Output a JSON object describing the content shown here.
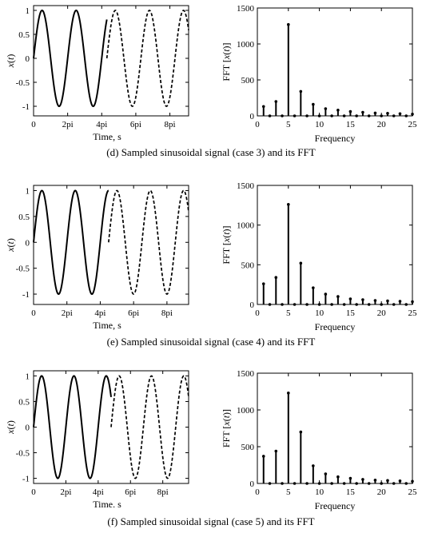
{
  "panels": [
    {
      "caption": "(d) Sampled sinusoidal signal (case 3) and its FFT",
      "time_xlabel": "Time, s",
      "time_ylabel": "x(t)",
      "fft_xlabel": "Frequency",
      "fft_ylabel": "FFT [x(t)]"
    },
    {
      "caption": "(e) Sampled sinusoidal signal (case 4) and its FFT",
      "time_xlabel": "Time, s",
      "time_ylabel": "x(t)",
      "fft_xlabel": "Frequency",
      "fft_ylabel": "FFT [x(t)]"
    },
    {
      "caption": "(f) Sampled sinusoidal signal (case 5) and its FFT",
      "time_xlabel": "Time. s",
      "time_ylabel": "x(t)",
      "fft_xlabel": "Frequency",
      "fft_ylabel": "FFT [x(t)]"
    }
  ],
  "chart_data": [
    {
      "type": "line",
      "panel": "d",
      "xlabel": "Time, s",
      "ylabel": "x(t)",
      "xticks": [
        "0",
        "2pi",
        "4pi",
        "6pi",
        "8pi"
      ],
      "yticks": [
        "-1",
        "-0.5",
        "0",
        "0.5",
        "1"
      ],
      "xlim_pi": [
        0,
        9.1
      ],
      "ylim": [
        -1.2,
        1.1
      ],
      "signal": "sin(t)",
      "solid_segment_pi": [
        0,
        4.3
      ],
      "dashed_segment_pi": [
        4.3,
        9.1
      ],
      "dashed_phase_shift_pi": 0.3
    },
    {
      "type": "bar",
      "panel": "d",
      "xlabel": "Frequency",
      "ylabel": "FFT [x(t)]",
      "xticks": [
        0,
        5,
        10,
        15,
        20,
        25
      ],
      "yticks": [
        0,
        500,
        1000,
        1500
      ],
      "xlim": [
        0,
        25
      ],
      "ylim": [
        0,
        1500
      ],
      "x": [
        1,
        2,
        3,
        4,
        5,
        6,
        7,
        8,
        9,
        10,
        11,
        12,
        13,
        14,
        15,
        16,
        17,
        18,
        19,
        20,
        21,
        22,
        23,
        24,
        25
      ],
      "values": [
        130,
        0,
        200,
        0,
        1270,
        0,
        340,
        0,
        160,
        0,
        100,
        0,
        80,
        0,
        60,
        0,
        50,
        0,
        40,
        0,
        35,
        0,
        30,
        0,
        25
      ]
    },
    {
      "type": "line",
      "panel": "e",
      "xlabel": "Time, s",
      "ylabel": "x(t)",
      "xticks": [
        "0",
        "2pi",
        "4pi",
        "6pi",
        "8pi"
      ],
      "yticks": [
        "-1",
        "-0.5",
        "0",
        "0.5",
        "1"
      ],
      "xlim_pi": [
        0,
        9.3
      ],
      "ylim": [
        -1.2,
        1.1
      ],
      "signal": "sin(t)",
      "solid_segment_pi": [
        0,
        4.5
      ],
      "dashed_segment_pi": [
        4.5,
        9.3
      ],
      "dashed_phase_shift_pi": 0.5
    },
    {
      "type": "bar",
      "panel": "e",
      "xlabel": "Frequency",
      "ylabel": "FFT [x(t)]",
      "xticks": [
        0,
        5,
        10,
        15,
        20,
        25
      ],
      "yticks": [
        0,
        500,
        1000,
        1500
      ],
      "xlim": [
        0,
        25
      ],
      "ylim": [
        0,
        1500
      ],
      "x": [
        1,
        2,
        3,
        4,
        5,
        6,
        7,
        8,
        9,
        10,
        11,
        12,
        13,
        14,
        15,
        16,
        17,
        18,
        19,
        20,
        21,
        22,
        23,
        24,
        25
      ],
      "values": [
        260,
        0,
        340,
        0,
        1260,
        0,
        520,
        0,
        210,
        0,
        130,
        0,
        100,
        0,
        70,
        0,
        60,
        0,
        50,
        0,
        45,
        0,
        40,
        0,
        35
      ]
    },
    {
      "type": "line",
      "panel": "f",
      "xlabel": "Time. s",
      "ylabel": "x(t)",
      "xticks": [
        "0",
        "2pi",
        "4pi",
        "6pi",
        "8pi"
      ],
      "yticks": [
        "-1",
        "-0.5",
        "0",
        "0.5",
        "1"
      ],
      "xlim_pi": [
        0,
        9.6
      ],
      "ylim": [
        -1.1,
        1.1
      ],
      "signal": "sin(t)",
      "solid_segment_pi": [
        0,
        4.8
      ],
      "dashed_segment_pi": [
        4.8,
        9.6
      ],
      "dashed_phase_shift_pi": 0.8
    },
    {
      "type": "bar",
      "panel": "f",
      "xlabel": "Frequency",
      "ylabel": "FFT [x(t)]",
      "xticks": [
        0,
        5,
        10,
        15,
        20,
        25
      ],
      "yticks": [
        0,
        500,
        1000,
        1500
      ],
      "xlim": [
        0,
        25
      ],
      "ylim": [
        0,
        1500
      ],
      "x": [
        1,
        2,
        3,
        4,
        5,
        6,
        7,
        8,
        9,
        10,
        11,
        12,
        13,
        14,
        15,
        16,
        17,
        18,
        19,
        20,
        21,
        22,
        23,
        24,
        25
      ],
      "values": [
        370,
        0,
        440,
        0,
        1230,
        0,
        700,
        0,
        240,
        0,
        130,
        0,
        90,
        0,
        70,
        0,
        55,
        0,
        45,
        0,
        40,
        0,
        35,
        0,
        30
      ]
    }
  ]
}
